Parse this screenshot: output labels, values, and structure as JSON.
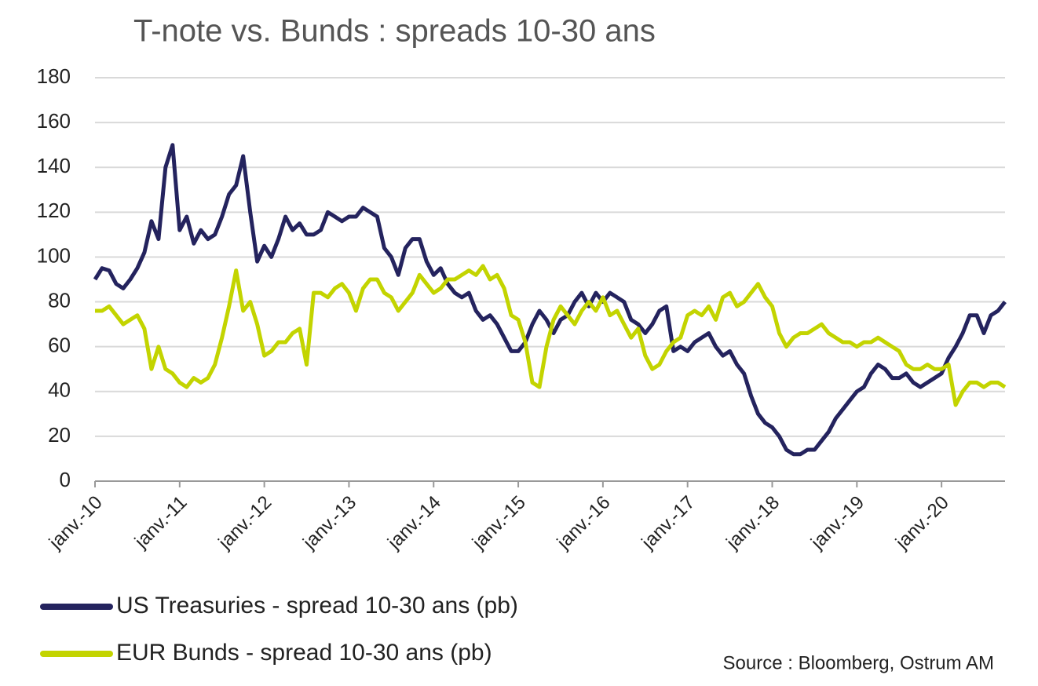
{
  "chart_data": {
    "type": "line",
    "title": "T-note vs. Bunds : spreads 10-30 ans",
    "annotation": "Source : Bloomberg, Ostrum AM",
    "categories": [
      "janv.-10",
      null,
      null,
      null,
      null,
      null,
      null,
      null,
      null,
      null,
      null,
      null,
      "janv.-11",
      null,
      null,
      null,
      null,
      null,
      null,
      null,
      null,
      null,
      null,
      null,
      "janv.-12",
      null,
      null,
      null,
      null,
      null,
      null,
      null,
      null,
      null,
      null,
      null,
      "janv.-13",
      null,
      null,
      null,
      null,
      null,
      null,
      null,
      null,
      null,
      null,
      null,
      "janv.-14",
      null,
      null,
      null,
      null,
      null,
      null,
      null,
      null,
      null,
      null,
      null,
      "janv.-15",
      null,
      null,
      null,
      null,
      null,
      null,
      null,
      null,
      null,
      null,
      null,
      "janv.-16",
      null,
      null,
      null,
      null,
      null,
      null,
      null,
      null,
      null,
      null,
      null,
      "janv.-17",
      null,
      null,
      null,
      null,
      null,
      null,
      null,
      null,
      null,
      null,
      null,
      "janv.-18",
      null,
      null,
      null,
      null,
      null,
      null,
      null,
      null,
      null,
      null,
      null,
      "janv.-19",
      null,
      null,
      null,
      null,
      null,
      null,
      null,
      null,
      null,
      null,
      null,
      "janv.-20",
      null,
      null,
      null,
      null,
      null,
      null,
      null,
      null,
      null
    ],
    "series": [
      {
        "name": "US Treasuries - spread 10-30 ans (pb)",
        "color": "#24235e",
        "values": [
          90,
          95,
          94,
          88,
          86,
          90,
          95,
          102,
          116,
          108,
          140,
          150,
          112,
          118,
          106,
          112,
          108,
          110,
          118,
          128,
          132,
          145,
          120,
          98,
          105,
          100,
          108,
          118,
          112,
          115,
          110,
          110,
          112,
          120,
          118,
          116,
          118,
          118,
          122,
          120,
          118,
          104,
          100,
          92,
          104,
          108,
          108,
          98,
          92,
          95,
          88,
          84,
          82,
          84,
          76,
          72,
          74,
          70,
          64,
          58,
          58,
          62,
          70,
          76,
          72,
          66,
          72,
          74,
          80,
          84,
          78,
          84,
          80,
          84,
          82,
          80,
          72,
          70,
          66,
          70,
          76,
          78,
          58,
          60,
          58,
          62,
          64,
          66,
          60,
          56,
          58,
          52,
          48,
          38,
          30,
          26,
          24,
          20,
          14,
          12,
          12,
          14,
          14,
          18,
          22,
          28,
          32,
          36,
          40,
          42,
          48,
          52,
          50,
          46,
          46,
          48,
          44,
          42,
          44,
          46,
          48,
          55,
          60,
          66,
          74,
          74,
          66,
          74,
          76,
          80
        ]
      },
      {
        "name": "EUR Bunds - spread 10-30 ans (pb)",
        "color": "#c3d400",
        "values": [
          76,
          76,
          78,
          74,
          70,
          72,
          74,
          68,
          50,
          60,
          50,
          48,
          44,
          42,
          46,
          44,
          46,
          52,
          64,
          78,
          94,
          76,
          80,
          70,
          56,
          58,
          62,
          62,
          66,
          68,
          52,
          84,
          84,
          82,
          86,
          88,
          84,
          76,
          86,
          90,
          90,
          84,
          82,
          76,
          80,
          84,
          92,
          88,
          84,
          86,
          90,
          90,
          92,
          94,
          92,
          96,
          90,
          92,
          86,
          74,
          72,
          62,
          44,
          42,
          60,
          72,
          78,
          74,
          70,
          76,
          80,
          76,
          82,
          74,
          76,
          70,
          64,
          68,
          56,
          50,
          52,
          58,
          62,
          64,
          74,
          76,
          74,
          78,
          72,
          82,
          84,
          78,
          80,
          84,
          88,
          82,
          78,
          66,
          60,
          64,
          66,
          66,
          68,
          70,
          66,
          64,
          62,
          62,
          60,
          62,
          62,
          64,
          62,
          60,
          58,
          52,
          50,
          50,
          52,
          50,
          50,
          52,
          34,
          40,
          44,
          44,
          42,
          44,
          44,
          42
        ]
      }
    ],
    "ylim": [
      0,
      180
    ],
    "yticks": [
      0,
      20,
      40,
      60,
      80,
      100,
      120,
      140,
      160,
      180
    ],
    "grid": true
  }
}
